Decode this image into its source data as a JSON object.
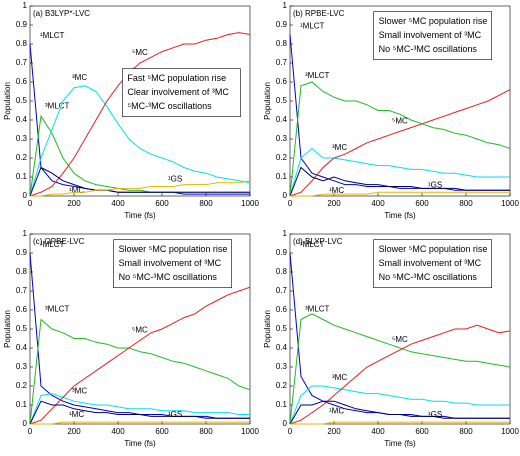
{
  "chart_data": [
    {
      "type": "line",
      "title": "(a) B3LYP*-LVC",
      "x_label": "Time (fs)",
      "y_label": "Population",
      "annotations": [
        "Fast ⁵MC population rise",
        "Clear involvement of ³MC",
        "⁵MC-³MC oscillations"
      ],
      "x": [
        0,
        50,
        100,
        150,
        200,
        250,
        300,
        350,
        400,
        450,
        500,
        550,
        600,
        650,
        700,
        750,
        800,
        850,
        900,
        950,
        1000
      ],
      "xlim": [
        0,
        1000
      ],
      "xticks": [
        0,
        200,
        400,
        600,
        800,
        1000
      ],
      "ylim": [
        0,
        1
      ],
      "yticks": [
        0,
        0.1,
        0.2,
        0.3,
        0.4,
        0.5,
        0.6,
        0.7,
        0.8,
        0.9,
        1
      ],
      "series": [
        {
          "name": "¹MLCT",
          "color": "#0000cc",
          "values": [
            0.8,
            0.15,
            0.08,
            0.06,
            0.05,
            0.04,
            0.03,
            0.03,
            0.02,
            0.02,
            0.02,
            0.02,
            0.02,
            0.02,
            0.01,
            0.01,
            0.01,
            0.01,
            0.01,
            0.01,
            0.01
          ]
        },
        {
          "name": "³MLCT",
          "color": "#22bb22",
          "values": [
            0,
            0.42,
            0.33,
            0.2,
            0.12,
            0.08,
            0.06,
            0.05,
            0.04,
            0.03,
            0.03,
            0.02,
            0.02,
            0.02,
            0.02,
            0.02,
            0.02,
            0.02,
            0.02,
            0.02,
            0.02
          ]
        },
        {
          "name": "³MC",
          "color": "#00e0ee",
          "values": [
            0,
            0.2,
            0.35,
            0.5,
            0.57,
            0.58,
            0.55,
            0.47,
            0.38,
            0.3,
            0.25,
            0.22,
            0.2,
            0.18,
            0.15,
            0.13,
            0.12,
            0.1,
            0.09,
            0.08,
            0.07
          ]
        },
        {
          "name": "⁵MC",
          "color": "#e02020",
          "values": [
            0,
            0.02,
            0.05,
            0.12,
            0.2,
            0.3,
            0.4,
            0.5,
            0.58,
            0.65,
            0.7,
            0.73,
            0.76,
            0.78,
            0.8,
            0.8,
            0.82,
            0.83,
            0.85,
            0.86,
            0.85
          ]
        },
        {
          "name": "¹MC",
          "color": "#000066",
          "values": [
            0,
            0.15,
            0.12,
            0.08,
            0.06,
            0.04,
            0.03,
            0.03,
            0.02,
            0.02,
            0.02,
            0.02,
            0.02,
            0.02,
            0.02,
            0.02,
            0.02,
            0.02,
            0.02,
            0.02,
            0.02
          ]
        },
        {
          "name": "¹GS",
          "color": "#e6b800",
          "values": [
            0,
            0,
            0.01,
            0.01,
            0.02,
            0.02,
            0.03,
            0.03,
            0.04,
            0.04,
            0.04,
            0.05,
            0.05,
            0.05,
            0.06,
            0.06,
            0.06,
            0.07,
            0.07,
            0.07,
            0.08
          ]
        }
      ]
    },
    {
      "type": "line",
      "title": "(b) RPBE-LVC",
      "x_label": "Time (fs)",
      "y_label": "Population",
      "annotations": [
        "Slower ⁵MC population rise",
        "Small involvement of ³MC",
        "No ⁵MC-³MC oscillations"
      ],
      "x": [
        0,
        50,
        100,
        150,
        200,
        250,
        300,
        350,
        400,
        450,
        500,
        550,
        600,
        650,
        700,
        750,
        800,
        850,
        900,
        950,
        1000
      ],
      "xlim": [
        0,
        1000
      ],
      "xticks": [
        0,
        200,
        400,
        600,
        800,
        1000
      ],
      "ylim": [
        0,
        1
      ],
      "yticks": [
        0,
        0.1,
        0.2,
        0.3,
        0.4,
        0.5,
        0.6,
        0.7,
        0.8,
        0.9,
        1
      ],
      "series": [
        {
          "name": "¹MLCT",
          "color": "#0000cc",
          "values": [
            0.85,
            0.2,
            0.12,
            0.1,
            0.08,
            0.06,
            0.06,
            0.05,
            0.05,
            0.05,
            0.04,
            0.04,
            0.04,
            0.04,
            0.04,
            0.03,
            0.03,
            0.03,
            0.03,
            0.03,
            0.03
          ]
        },
        {
          "name": "³MLCT",
          "color": "#22bb22",
          "values": [
            0,
            0.58,
            0.6,
            0.55,
            0.52,
            0.5,
            0.5,
            0.48,
            0.45,
            0.45,
            0.43,
            0.4,
            0.38,
            0.36,
            0.35,
            0.33,
            0.32,
            0.3,
            0.28,
            0.27,
            0.25
          ]
        },
        {
          "name": "³MC",
          "color": "#00e0ee",
          "values": [
            0,
            0.2,
            0.25,
            0.2,
            0.2,
            0.19,
            0.18,
            0.17,
            0.16,
            0.16,
            0.15,
            0.14,
            0.14,
            0.13,
            0.12,
            0.12,
            0.11,
            0.1,
            0.1,
            0.1,
            0.1
          ]
        },
        {
          "name": "⁵MC",
          "color": "#e02020",
          "values": [
            0,
            0.02,
            0.08,
            0.15,
            0.2,
            0.22,
            0.25,
            0.28,
            0.3,
            0.32,
            0.34,
            0.36,
            0.38,
            0.4,
            0.42,
            0.44,
            0.46,
            0.48,
            0.5,
            0.53,
            0.56
          ]
        },
        {
          "name": "¹MC",
          "color": "#000066",
          "values": [
            0,
            0.15,
            0.1,
            0.08,
            0.1,
            0.08,
            0.07,
            0.06,
            0.06,
            0.05,
            0.05,
            0.05,
            0.04,
            0.04,
            0.04,
            0.04,
            0.03,
            0.03,
            0.03,
            0.03,
            0.03
          ]
        },
        {
          "name": "¹GS",
          "color": "#e6b800",
          "values": [
            0,
            0,
            0,
            0.01,
            0.01,
            0.01,
            0.01,
            0.01,
            0.02,
            0.02,
            0.02,
            0.02,
            0.02,
            0.02,
            0.02,
            0.02,
            0.02,
            0.02,
            0.02,
            0.02,
            0.02
          ]
        }
      ]
    },
    {
      "type": "line",
      "title": "(c) OPBE-LVC",
      "x_label": "Time (fs)",
      "y_label": "Population",
      "annotations": [
        "Slower ⁵MC population rise",
        "Small involvement of ³MC",
        "No ⁵MC-³MC oscillations"
      ],
      "x": [
        0,
        50,
        100,
        150,
        200,
        250,
        300,
        350,
        400,
        450,
        500,
        550,
        600,
        650,
        700,
        750,
        800,
        850,
        900,
        950,
        1000
      ],
      "xlim": [
        0,
        1000
      ],
      "xticks": [
        0,
        200,
        400,
        600,
        800,
        1000
      ],
      "ylim": [
        0,
        1
      ],
      "yticks": [
        0,
        0.1,
        0.2,
        0.3,
        0.4,
        0.5,
        0.6,
        0.7,
        0.8,
        0.9,
        1
      ],
      "series": [
        {
          "name": "¹MLCT",
          "color": "#0000cc",
          "values": [
            0.9,
            0.2,
            0.15,
            0.12,
            0.1,
            0.09,
            0.08,
            0.07,
            0.06,
            0.06,
            0.05,
            0.05,
            0.05,
            0.04,
            0.04,
            0.04,
            0.04,
            0.03,
            0.03,
            0.03,
            0.03
          ]
        },
        {
          "name": "³MLCT",
          "color": "#22bb22",
          "values": [
            0,
            0.55,
            0.5,
            0.48,
            0.45,
            0.45,
            0.43,
            0.42,
            0.4,
            0.4,
            0.38,
            0.37,
            0.35,
            0.33,
            0.32,
            0.3,
            0.28,
            0.26,
            0.24,
            0.2,
            0.18
          ]
        },
        {
          "name": "³MC",
          "color": "#00e0ee",
          "values": [
            0,
            0.15,
            0.16,
            0.14,
            0.12,
            0.11,
            0.1,
            0.1,
            0.09,
            0.08,
            0.08,
            0.08,
            0.07,
            0.07,
            0.07,
            0.06,
            0.06,
            0.06,
            0.06,
            0.05,
            0.05
          ]
        },
        {
          "name": "⁵MC",
          "color": "#e02020",
          "values": [
            0,
            0.02,
            0.08,
            0.14,
            0.2,
            0.24,
            0.28,
            0.32,
            0.36,
            0.4,
            0.44,
            0.48,
            0.5,
            0.53,
            0.56,
            0.58,
            0.62,
            0.65,
            0.68,
            0.7,
            0.72
          ]
        },
        {
          "name": "¹MC",
          "color": "#000066",
          "values": [
            0,
            0.12,
            0.1,
            0.1,
            0.08,
            0.07,
            0.06,
            0.06,
            0.05,
            0.05,
            0.05,
            0.04,
            0.04,
            0.04,
            0.04,
            0.04,
            0.03,
            0.03,
            0.03,
            0.03,
            0.03
          ]
        },
        {
          "name": "¹GS",
          "color": "#e6b800",
          "values": [
            0,
            0,
            0,
            0.01,
            0.01,
            0.01,
            0.01,
            0.01,
            0.01,
            0.01,
            0.01,
            0.01,
            0.01,
            0.01,
            0.01,
            0.01,
            0.01,
            0.01,
            0.01,
            0.01,
            0.01
          ]
        }
      ]
    },
    {
      "type": "line",
      "title": "(d) BLYP-LVC",
      "x_label": "Time (fs)",
      "y_label": "Population",
      "annotations": [
        "Slower ⁵MC population rise",
        "Small involvement of ³MC",
        "No ⁵MC-³MC oscillations"
      ],
      "x": [
        0,
        50,
        100,
        150,
        200,
        250,
        300,
        350,
        400,
        450,
        500,
        550,
        600,
        650,
        700,
        750,
        800,
        850,
        900,
        950,
        1000
      ],
      "xlim": [
        0,
        1000
      ],
      "xticks": [
        0,
        200,
        400,
        600,
        800,
        1000
      ],
      "ylim": [
        0,
        1
      ],
      "yticks": [
        0,
        0.1,
        0.2,
        0.3,
        0.4,
        0.5,
        0.6,
        0.7,
        0.8,
        0.9,
        1
      ],
      "series": [
        {
          "name": "¹MLCT",
          "color": "#0000cc",
          "values": [
            0.9,
            0.25,
            0.15,
            0.12,
            0.1,
            0.08,
            0.07,
            0.06,
            0.06,
            0.05,
            0.05,
            0.05,
            0.04,
            0.04,
            0.04,
            0.03,
            0.03,
            0.03,
            0.03,
            0.03,
            0.03
          ]
        },
        {
          "name": "³MLCT",
          "color": "#22bb22",
          "values": [
            0,
            0.55,
            0.58,
            0.55,
            0.52,
            0.5,
            0.48,
            0.46,
            0.44,
            0.42,
            0.4,
            0.38,
            0.37,
            0.36,
            0.35,
            0.34,
            0.33,
            0.33,
            0.32,
            0.31,
            0.3
          ]
        },
        {
          "name": "³MC",
          "color": "#00e0ee",
          "values": [
            0,
            0.15,
            0.2,
            0.2,
            0.19,
            0.18,
            0.17,
            0.16,
            0.16,
            0.15,
            0.14,
            0.13,
            0.13,
            0.12,
            0.12,
            0.11,
            0.11,
            0.1,
            0.1,
            0.1,
            0.1
          ]
        },
        {
          "name": "⁵MC",
          "color": "#e02020",
          "values": [
            0,
            0.02,
            0.06,
            0.1,
            0.15,
            0.2,
            0.25,
            0.3,
            0.33,
            0.36,
            0.39,
            0.42,
            0.44,
            0.46,
            0.48,
            0.5,
            0.5,
            0.52,
            0.5,
            0.48,
            0.49
          ]
        },
        {
          "name": "¹MC",
          "color": "#000066",
          "values": [
            0,
            0.1,
            0.1,
            0.12,
            0.12,
            0.1,
            0.08,
            0.07,
            0.06,
            0.05,
            0.05,
            0.04,
            0.04,
            0.04,
            0.03,
            0.03,
            0.03,
            0.03,
            0.03,
            0.03,
            0.03
          ]
        },
        {
          "name": "¹GS",
          "color": "#e6b800",
          "values": [
            0,
            0,
            0,
            0,
            0.01,
            0.01,
            0.01,
            0.01,
            0.01,
            0.01,
            0.01,
            0.01,
            0.01,
            0.01,
            0.01,
            0.01,
            0.01,
            0.01,
            0.01,
            0.01,
            0.01
          ]
        }
      ]
    }
  ]
}
